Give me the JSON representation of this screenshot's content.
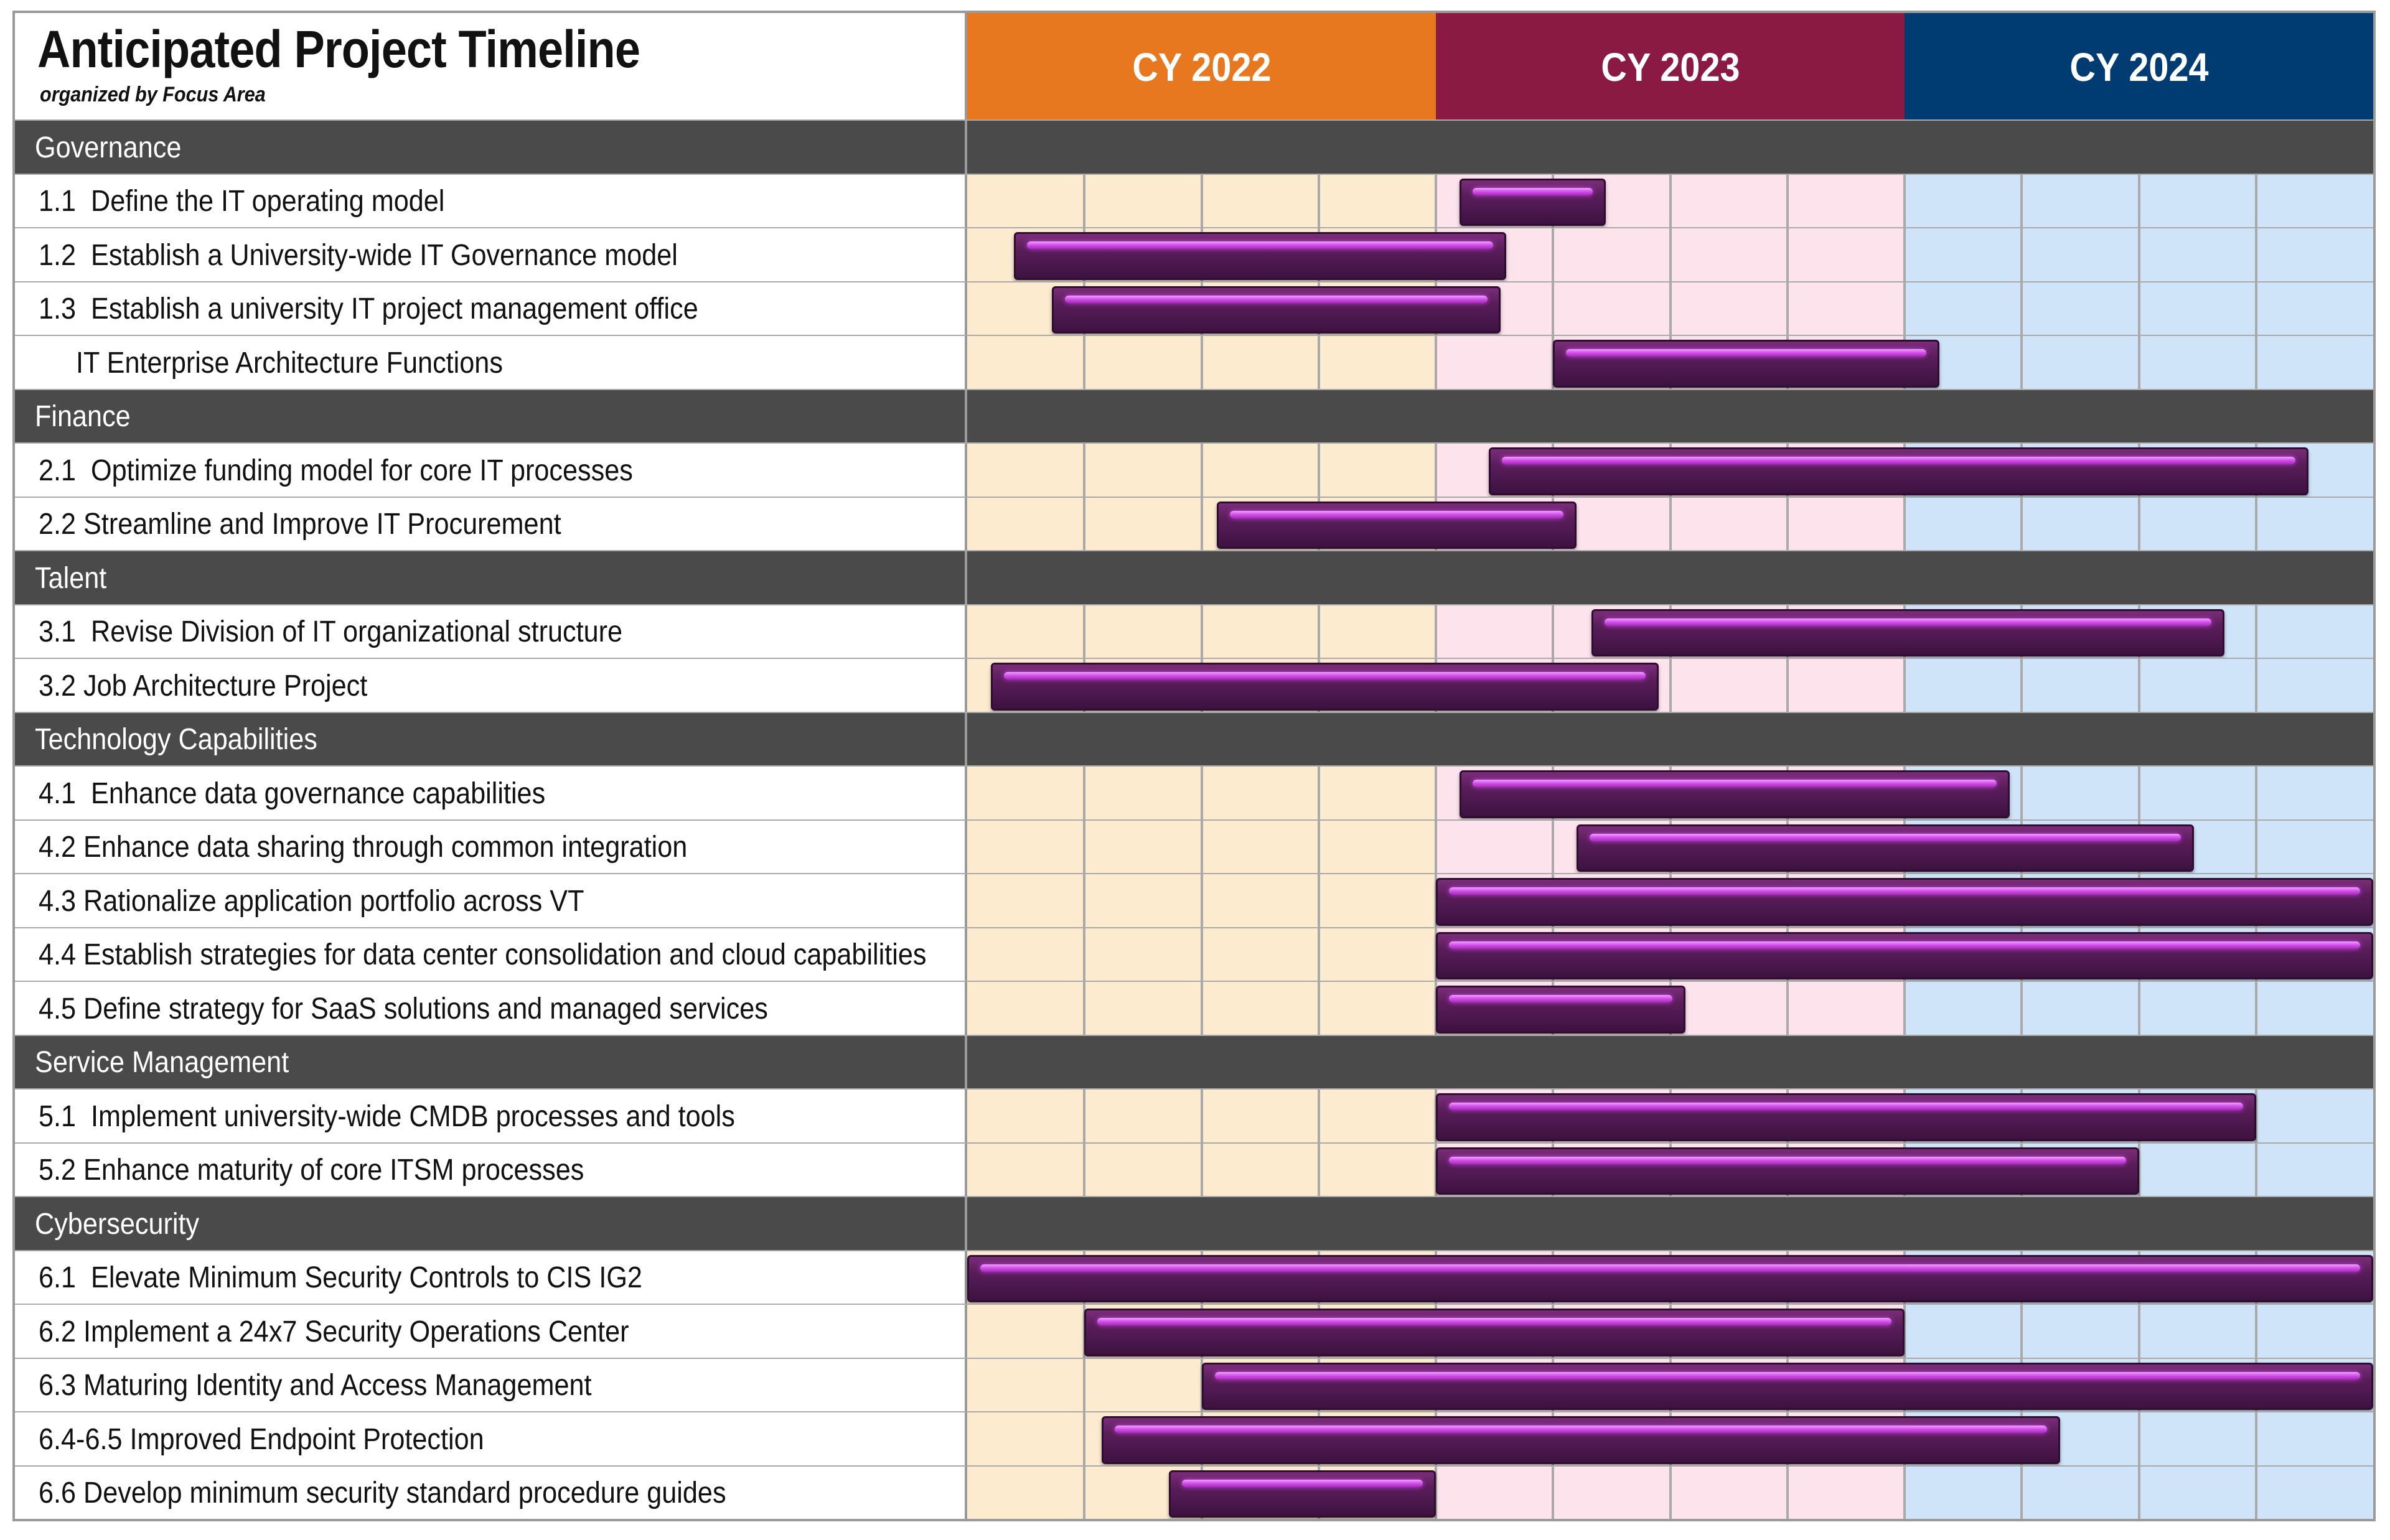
{
  "title": "Anticipated Project Timeline",
  "subtitle": "organized by Focus Area",
  "years": [
    {
      "label": "CY 2022",
      "header_color": "#e8781f",
      "cell_color": "#fdebd0"
    },
    {
      "label": "CY 2023",
      "header_color": "#8b1a43",
      "cell_color": "#fde3ec"
    },
    {
      "label": "CY 2024",
      "header_color": "#003b72",
      "cell_color": "#cfe4f8"
    }
  ],
  "colors": {
    "section_bg": "#4a4a4a",
    "grid_line": "#a9a9a9",
    "bar_fill": "#561b58",
    "bar_highlight": "#d24ee8"
  },
  "chart_data": {
    "type": "gantt",
    "time_axis": {
      "start": "2022-01",
      "end": "2024-12",
      "unit": "quarter",
      "quarters_per_year": 4
    },
    "sections": [
      {
        "name": "Governance",
        "tasks": [
          {
            "label": "1.1  Define the IT operating model",
            "start": 4.2,
            "end": 5.45
          },
          {
            "label": "1.2  Establish a University-wide IT Governance model",
            "start": 0.4,
            "end": 4.6
          },
          {
            "label": "1.3  Establish a university IT project management office",
            "start": 0.72,
            "end": 4.55
          },
          {
            "label": "     IT Enterprise Architecture Functions",
            "start": 5.0,
            "end": 8.3
          }
        ]
      },
      {
        "name": "Finance",
        "tasks": [
          {
            "label": "2.1  Optimize funding model for core IT processes",
            "start": 4.45,
            "end": 11.45
          },
          {
            "label": "2.2 Streamline and Improve IT Procurement",
            "start": 2.13,
            "end": 5.2
          }
        ]
      },
      {
        "name": "Talent",
        "tasks": [
          {
            "label": "3.1  Revise Division of IT organizational structure",
            "start": 5.33,
            "end": 10.73
          },
          {
            "label": "3.2 Job Architecture Project",
            "start": 0.2,
            "end": 5.9
          }
        ]
      },
      {
        "name": "Technology Capabilities",
        "tasks": [
          {
            "label": "4.1  Enhance data governance capabilities",
            "start": 4.2,
            "end": 8.9
          },
          {
            "label": "4.2 Enhance data sharing through common integration",
            "start": 5.2,
            "end": 10.47
          },
          {
            "label": "4.3 Rationalize application portfolio across VT",
            "start": 4.0,
            "end": 12.0
          },
          {
            "label": "4.4 Establish strategies for data center consolidation and cloud capabilities",
            "start": 4.0,
            "end": 12.0
          },
          {
            "label": "4.5 Define strategy for SaaS solutions and managed services",
            "start": 4.0,
            "end": 6.13
          }
        ]
      },
      {
        "name": "Service Management",
        "tasks": [
          {
            "label": "5.1  Implement university-wide CMDB processes and tools",
            "start": 4.0,
            "end": 11.0
          },
          {
            "label": "5.2 Enhance maturity of core ITSM processes",
            "start": 4.0,
            "end": 10.0
          }
        ]
      },
      {
        "name": "Cybersecurity",
        "tasks": [
          {
            "label": "6.1  Elevate Minimum Security Controls to CIS IG2",
            "start": 0.0,
            "end": 12.0
          },
          {
            "label": "6.2 Implement a 24x7 Security Operations Center",
            "start": 1.0,
            "end": 8.0
          },
          {
            "label": "6.3 Maturing Identity and Access Management",
            "start": 2.0,
            "end": 12.0
          },
          {
            "label": "6.4-6.5 Improved Endpoint Protection",
            "start": 1.15,
            "end": 9.33
          },
          {
            "label": "6.6 Develop minimum security standard procedure guides",
            "start": 1.72,
            "end": 4.0
          }
        ]
      }
    ]
  }
}
